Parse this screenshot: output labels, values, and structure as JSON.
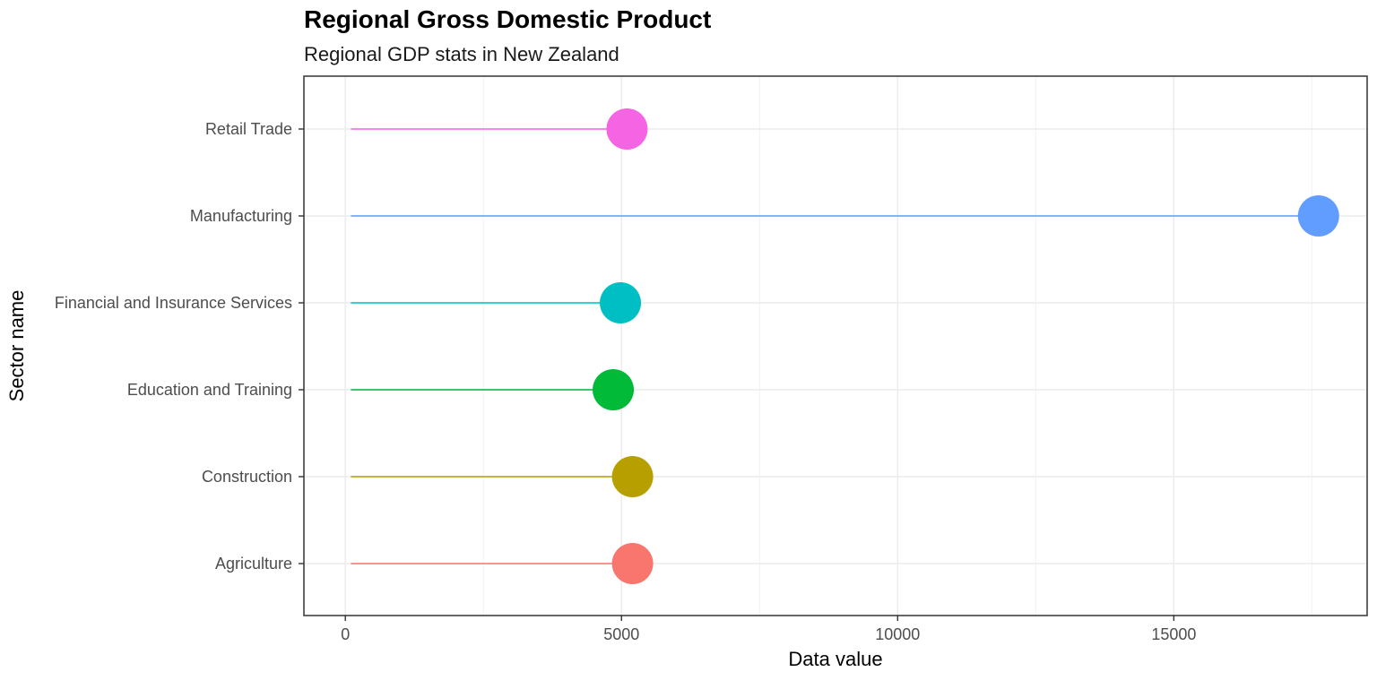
{
  "chart_data": {
    "type": "lollipop",
    "title": "Regional Gross Domestic Product",
    "subtitle": "Regional GDP stats in New Zealand",
    "xlabel": "Data value",
    "ylabel": "Sector name",
    "xlim": [
      -750,
      18500
    ],
    "x_ticks": [
      0,
      5000,
      10000,
      15000
    ],
    "x_tick_labels": [
      "0",
      "5000",
      "10000",
      "15000"
    ],
    "grid": true,
    "segment_start": 100,
    "categories": [
      "Agriculture",
      "Construction",
      "Education and Training",
      "Financial and Insurance Services",
      "Manufacturing",
      "Retail Trade"
    ],
    "values": [
      5200,
      5200,
      4850,
      4980,
      17620,
      5100
    ],
    "colors": [
      "#F8766D",
      "#B79F00",
      "#00BA38",
      "#00BFC4",
      "#619CFF",
      "#F564E3"
    ]
  }
}
